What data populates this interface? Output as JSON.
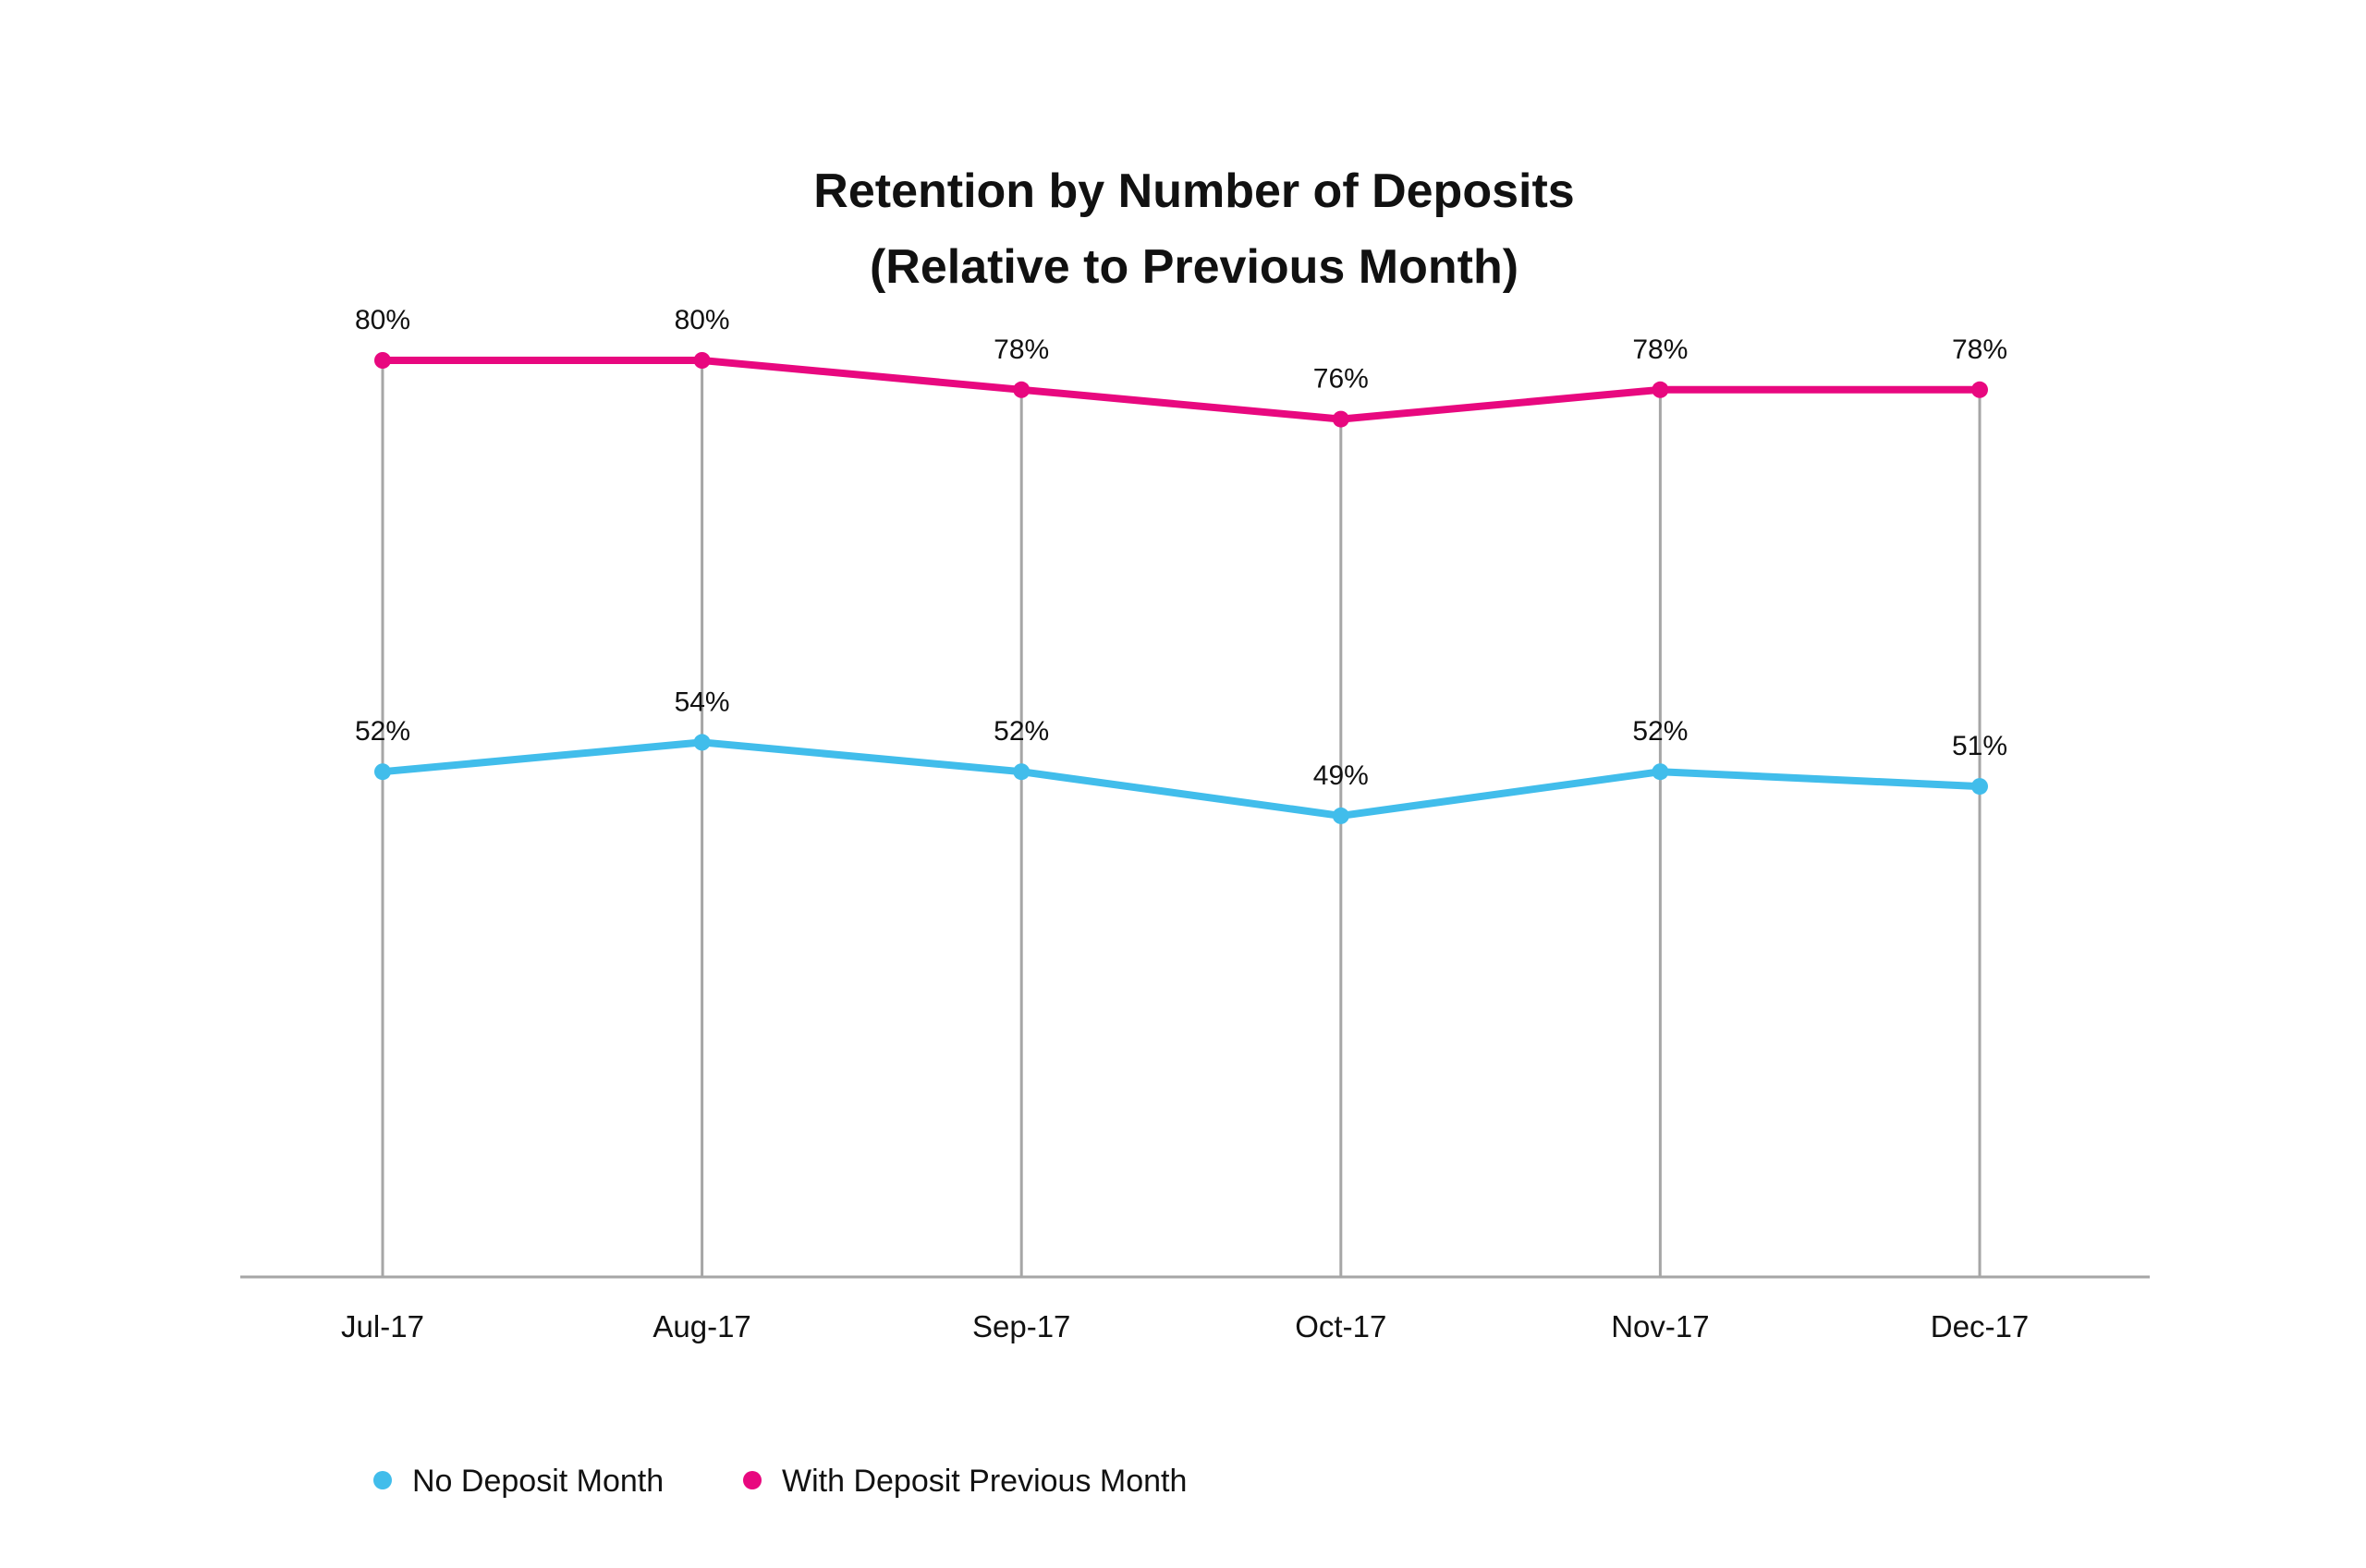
{
  "chart_data": {
    "type": "line",
    "title": "Retention by Number of Deposits",
    "subtitle": "(Relative to Previous Month)",
    "categories": [
      "Jul-17",
      "Aug-17",
      "Sep-17",
      "Oct-17",
      "Nov-17",
      "Dec-17"
    ],
    "series": [
      {
        "name": "No Deposit Month",
        "color": "#41bdeb",
        "values": [
          52,
          54,
          52,
          49,
          52,
          51
        ],
        "labels": [
          "52%",
          "54%",
          "52%",
          "49%",
          "52%",
          "51%"
        ]
      },
      {
        "name": "With Deposit Previous Month",
        "color": "#e8087f",
        "values": [
          80,
          80,
          78,
          76,
          78,
          78
        ],
        "labels": [
          "80%",
          "80%",
          "78%",
          "76%",
          "78%",
          "78%"
        ]
      }
    ],
    "drop_lines": true,
    "grid": false,
    "legend": "bottom-left",
    "axis_color": "#a6a6a6"
  }
}
